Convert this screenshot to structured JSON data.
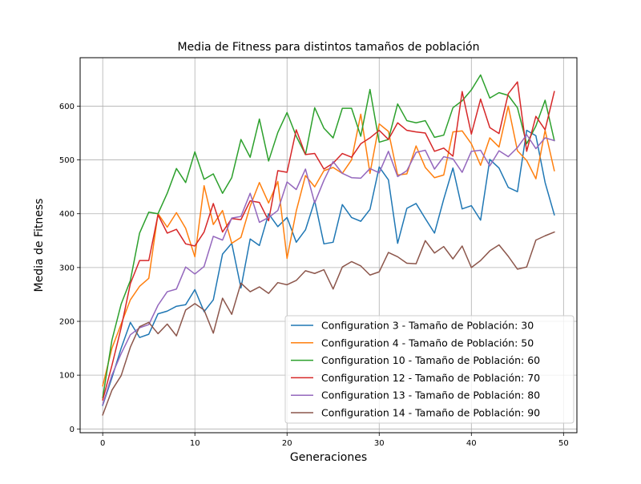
{
  "chart_data": {
    "type": "line",
    "title": "Media de Fitness para distintos tamaños de población",
    "xlabel": "Generaciones",
    "ylabel": "Media de Fitness",
    "xlim": [
      -2.45,
      51.45
    ],
    "ylim": [
      -7,
      690
    ],
    "xticks": [
      0,
      10,
      20,
      30,
      40,
      50
    ],
    "yticks": [
      0,
      100,
      200,
      300,
      400,
      500,
      600
    ],
    "grid": true,
    "legend_position": "lower-right",
    "x": [
      0,
      1,
      2,
      3,
      4,
      5,
      6,
      7,
      8,
      9,
      10,
      11,
      12,
      13,
      14,
      15,
      16,
      17,
      18,
      19,
      20,
      21,
      22,
      23,
      24,
      25,
      26,
      27,
      28,
      29,
      30,
      31,
      32,
      33,
      34,
      35,
      36,
      37,
      38,
      39,
      40,
      41,
      42,
      43,
      44,
      45,
      46,
      47,
      48,
      49
    ],
    "series": [
      {
        "name": "Configuration 3 - Tamaño de Población: 30",
        "color": "#1f77b4",
        "values": [
          44,
          95,
          150,
          198,
          170,
          176,
          214,
          219,
          228,
          231,
          259,
          218,
          240,
          325,
          345,
          262,
          353,
          341,
          400,
          376,
          393,
          347,
          370,
          424,
          344,
          347,
          417,
          393,
          386,
          408,
          487,
          463,
          345,
          410,
          419,
          391,
          364,
          427,
          485,
          409,
          415,
          388,
          501,
          485,
          449,
          441,
          555,
          545,
          458,
          398
        ]
      },
      {
        "name": "Configuration 4 - Tamaño de Población: 50",
        "color": "#ff7f0e",
        "values": [
          80,
          150,
          195,
          240,
          265,
          280,
          400,
          375,
          402,
          373,
          320,
          452,
          380,
          406,
          345,
          356,
          414,
          458,
          420,
          460,
          317,
          405,
          471,
          450,
          480,
          486,
          475,
          500,
          585,
          475,
          567,
          553,
          472,
          474,
          526,
          486,
          467,
          472,
          552,
          554,
          530,
          490,
          541,
          524,
          600,
          517,
          499,
          465,
          555,
          480
        ]
      },
      {
        "name": "Configuration 10 - Tamaño de Población: 60",
        "color": "#2ca02c",
        "values": [
          58,
          165,
          232,
          276,
          364,
          403,
          400,
          438,
          484,
          458,
          515,
          464,
          474,
          438,
          467,
          538,
          505,
          576,
          498,
          551,
          588,
          544,
          510,
          597,
          559,
          541,
          596,
          596,
          544,
          631,
          533,
          538,
          604,
          573,
          569,
          573,
          542,
          546,
          597,
          610,
          630,
          658,
          615,
          625,
          620,
          597,
          530,
          563,
          611,
          536
        ]
      },
      {
        "name": "Configuration 12 - Tamaño de Población: 70",
        "color": "#d62728",
        "values": [
          54,
          118,
          188,
          270,
          313,
          313,
          398,
          364,
          371,
          344,
          340,
          366,
          419,
          366,
          391,
          389,
          424,
          421,
          387,
          480,
          477,
          556,
          510,
          512,
          483,
          494,
          512,
          505,
          530,
          541,
          555,
          538,
          569,
          555,
          552,
          550,
          516,
          522,
          507,
          627,
          548,
          613,
          560,
          549,
          623,
          645,
          516,
          581,
          556,
          627
        ]
      },
      {
        "name": "Configuration 13 - Tamaño de Población: 80",
        "color": "#9467bd",
        "values": [
          45,
          100,
          140,
          175,
          188,
          194,
          230,
          255,
          260,
          301,
          288,
          302,
          358,
          351,
          392,
          395,
          438,
          384,
          393,
          406,
          459,
          445,
          483,
          420,
          462,
          497,
          475,
          467,
          466,
          484,
          476,
          516,
          469,
          480,
          514,
          518,
          483,
          506,
          502,
          477,
          516,
          518,
          489,
          517,
          506,
          523,
          547,
          521,
          541,
          536
        ]
      },
      {
        "name": "Configuration 14 - Tamaño de Población: 90",
        "color": "#8c564b",
        "values": [
          26,
          72,
          99,
          152,
          190,
          198,
          177,
          195,
          173,
          221,
          233,
          221,
          178,
          243,
          213,
          271,
          255,
          264,
          252,
          272,
          268,
          276,
          294,
          289,
          296,
          260,
          301,
          311,
          303,
          286,
          292,
          328,
          320,
          308,
          307,
          350,
          327,
          339,
          316,
          340,
          300,
          313,
          331,
          342,
          321,
          297,
          301,
          351,
          359,
          366
        ]
      }
    ]
  }
}
